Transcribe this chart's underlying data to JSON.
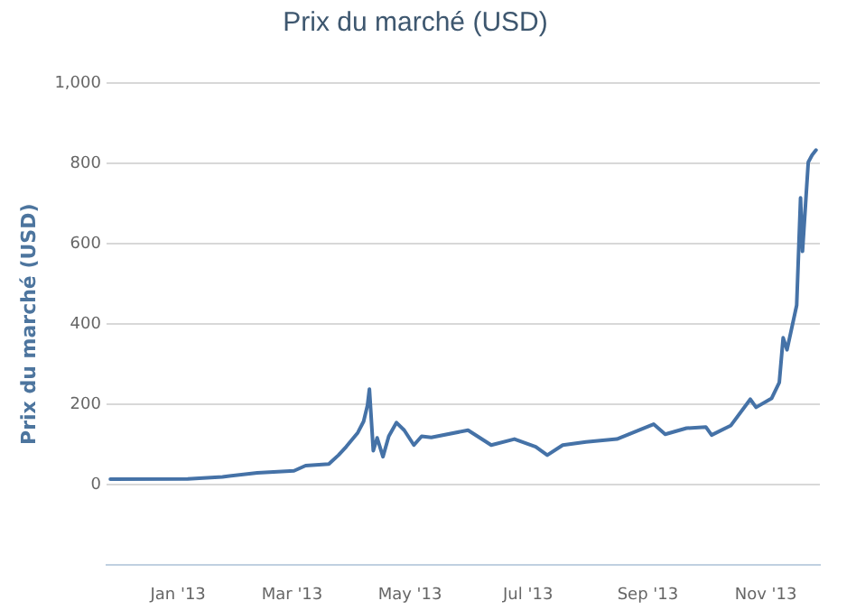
{
  "chart_data": {
    "type": "line",
    "title": "Prix du marché (USD)",
    "ylabel": "Prix du marché (USD)",
    "x": [
      "2012-11-27",
      "2013-01-06",
      "2013-01-24",
      "2013-02-11",
      "2013-03-02",
      "2013-03-08",
      "2013-03-20",
      "2013-03-25",
      "2013-03-29",
      "2013-04-04",
      "2013-04-07",
      "2013-04-09",
      "2013-04-10",
      "2013-04-12",
      "2013-04-14",
      "2013-04-17",
      "2013-04-20",
      "2013-04-24",
      "2013-04-28",
      "2013-05-03",
      "2013-05-07",
      "2013-05-12",
      "2013-05-31",
      "2013-06-12",
      "2013-06-24",
      "2013-07-05",
      "2013-07-11",
      "2013-07-19",
      "2013-07-31",
      "2013-08-16",
      "2013-09-04",
      "2013-09-10",
      "2013-09-21",
      "2013-10-01",
      "2013-10-04",
      "2013-10-14",
      "2013-10-24",
      "2013-10-27",
      "2013-11-04",
      "2013-11-08",
      "2013-11-10",
      "2013-11-12",
      "2013-11-17",
      "2013-11-19",
      "2013-11-20",
      "2013-11-23",
      "2013-11-25",
      "2013-11-27"
    ],
    "series": [
      {
        "color": "#4572a7",
        "values": [
          14,
          15,
          20,
          30,
          35,
          48,
          52,
          74,
          95,
          130,
          158,
          198,
          238,
          85,
          117,
          70,
          121,
          155,
          136,
          99,
          121,
          118,
          136,
          99,
          114,
          95,
          74,
          99,
          107,
          114,
          151,
          126,
          141,
          144,
          124,
          148,
          213,
          193,
          215,
          255,
          366,
          336,
          447,
          714,
          581,
          803,
          821,
          833
        ]
      }
    ],
    "xlim": [
      "2012-11-25",
      "2013-11-29"
    ],
    "xticks": [
      {
        "value": "2013-01-01",
        "label": "Jan '13"
      },
      {
        "value": "2013-03-01",
        "label": "Mar '13"
      },
      {
        "value": "2013-05-01",
        "label": "May '13"
      },
      {
        "value": "2013-07-01",
        "label": "Jul '13"
      },
      {
        "value": "2013-09-01",
        "label": "Sep '13"
      },
      {
        "value": "2013-11-01",
        "label": "Nov '13"
      }
    ],
    "ylim": [
      -200,
      1000
    ],
    "yticks": [
      {
        "value": 0,
        "label": "0"
      },
      {
        "value": 200,
        "label": "200"
      },
      {
        "value": 400,
        "label": "400"
      },
      {
        "value": 600,
        "label": "600"
      },
      {
        "value": 800,
        "label": "800"
      },
      {
        "value": 1000,
        "label": "1,000"
      }
    ],
    "grid": "y",
    "legend": false,
    "marker": "none",
    "line_style": "solid"
  }
}
